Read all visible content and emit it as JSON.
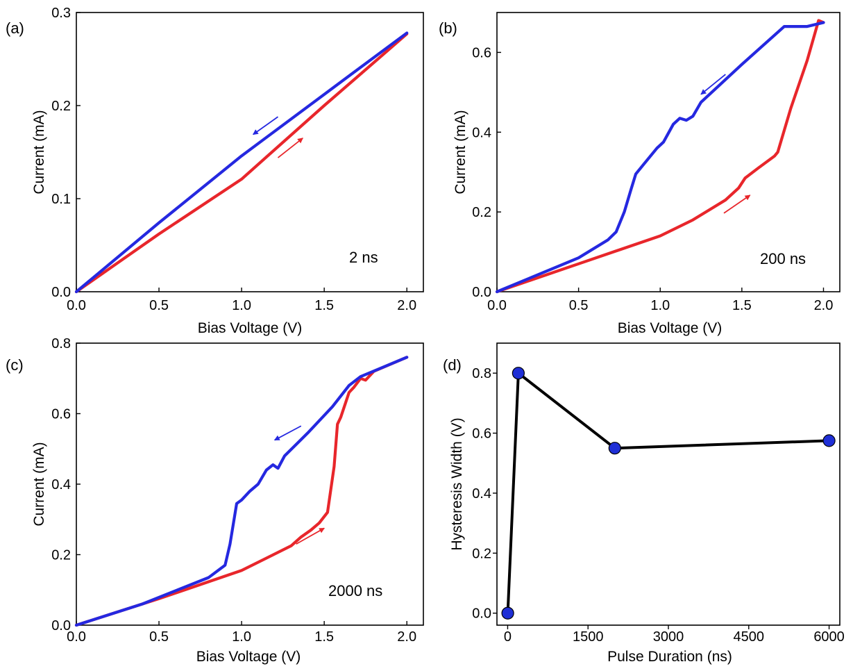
{
  "colors": {
    "forward": "#e8262b",
    "backward": "#2528e0",
    "marker": "#1f2fd6",
    "line_d": "#000000"
  },
  "chart_data": [
    {
      "panel": "(a)",
      "type": "line",
      "xlabel": "Bias Voltage (V)",
      "ylabel": "Current (mA)",
      "xlim": [
        0,
        2.1
      ],
      "ylim": [
        0,
        0.3
      ],
      "xticks": [
        "0.0",
        "0.5",
        "1.0",
        "1.5",
        "2.0"
      ],
      "yticks": [
        "0.0",
        "0.1",
        "0.2",
        "0.3"
      ],
      "annotation": "2 ns",
      "series": [
        {
          "color": "#e8262b",
          "direction": "forward",
          "x": [
            0,
            0.5,
            1.0,
            1.5,
            2.0
          ],
          "y": [
            0,
            0.062,
            0.121,
            0.2,
            0.277
          ]
        },
        {
          "color": "#2528e0",
          "direction": "backward",
          "x": [
            0,
            0.5,
            1.0,
            1.5,
            2.0
          ],
          "y": [
            0,
            0.074,
            0.146,
            0.212,
            0.278
          ]
        }
      ],
      "arrows": [
        {
          "color": "#e8262b",
          "from": [
            1.22,
            0.144
          ],
          "to": [
            1.37,
            0.165
          ]
        },
        {
          "color": "#2528e0",
          "from": [
            1.22,
            0.188
          ],
          "to": [
            1.07,
            0.169
          ]
        }
      ]
    },
    {
      "panel": "(b)",
      "type": "line",
      "xlabel": "Bias Voltage (V)",
      "ylabel": "Current (mA)",
      "xlim": [
        0,
        2.1
      ],
      "ylim": [
        0,
        0.7
      ],
      "xticks": [
        "0.0",
        "0.5",
        "1.0",
        "1.5",
        "2.0"
      ],
      "yticks": [
        "0.0",
        "0.2",
        "0.4",
        "0.6"
      ],
      "annotation": "200 ns",
      "series": [
        {
          "color": "#e8262b",
          "direction": "forward",
          "x": [
            0,
            0.5,
            1.0,
            1.2,
            1.4,
            1.48,
            1.52,
            1.6,
            1.7,
            1.72,
            1.8,
            1.9,
            1.97,
            2.0
          ],
          "y": [
            0,
            0.07,
            0.14,
            0.18,
            0.23,
            0.26,
            0.285,
            0.31,
            0.34,
            0.35,
            0.46,
            0.58,
            0.68,
            0.675
          ]
        },
        {
          "color": "#2528e0",
          "direction": "backward",
          "x": [
            0,
            0.5,
            0.68,
            0.73,
            0.78,
            0.82,
            0.85,
            0.9,
            0.98,
            1.02,
            1.08,
            1.12,
            1.16,
            1.2,
            1.25,
            1.5,
            1.76,
            1.9,
            2.0
          ],
          "y": [
            0,
            0.085,
            0.13,
            0.15,
            0.2,
            0.255,
            0.295,
            0.32,
            0.36,
            0.375,
            0.42,
            0.435,
            0.43,
            0.44,
            0.475,
            0.57,
            0.665,
            0.665,
            0.675
          ]
        }
      ],
      "arrows": [
        {
          "color": "#e8262b",
          "from": [
            1.39,
            0.197
          ],
          "to": [
            1.55,
            0.242
          ]
        },
        {
          "color": "#2528e0",
          "from": [
            1.4,
            0.545
          ],
          "to": [
            1.25,
            0.495
          ]
        }
      ]
    },
    {
      "panel": "(c)",
      "type": "line",
      "xlabel": "Bias Voltage (V)",
      "ylabel": "Current (mA)",
      "xlim": [
        0,
        2.1
      ],
      "ylim": [
        0,
        0.8
      ],
      "xticks": [
        "0.0",
        "0.5",
        "1.0",
        "1.5",
        "2.0"
      ],
      "yticks": [
        "0.0",
        "0.2",
        "0.4",
        "0.6",
        "0.8"
      ],
      "annotation": "2000 ns",
      "series": [
        {
          "color": "#e8262b",
          "direction": "forward",
          "x": [
            0,
            0.5,
            1.0,
            1.3,
            1.36,
            1.42,
            1.47,
            1.52,
            1.56,
            1.58,
            1.6,
            1.65,
            1.68,
            1.72,
            1.75,
            1.8,
            2.0
          ],
          "y": [
            0,
            0.075,
            0.155,
            0.225,
            0.25,
            0.27,
            0.29,
            0.32,
            0.45,
            0.57,
            0.59,
            0.66,
            0.675,
            0.7,
            0.695,
            0.72,
            0.76
          ]
        },
        {
          "color": "#2528e0",
          "direction": "backward",
          "x": [
            0,
            0.4,
            0.8,
            0.9,
            0.93,
            0.97,
            1.0,
            1.05,
            1.1,
            1.15,
            1.19,
            1.22,
            1.26,
            1.4,
            1.55,
            1.65,
            1.72,
            2.0
          ],
          "y": [
            0,
            0.06,
            0.135,
            0.17,
            0.23,
            0.345,
            0.355,
            0.38,
            0.4,
            0.44,
            0.455,
            0.445,
            0.48,
            0.545,
            0.62,
            0.68,
            0.705,
            0.76
          ]
        }
      ],
      "arrows": [
        {
          "color": "#e8262b",
          "from": [
            1.33,
            0.23
          ],
          "to": [
            1.5,
            0.275
          ]
        },
        {
          "color": "#2528e0",
          "from": [
            1.36,
            0.565
          ],
          "to": [
            1.2,
            0.525
          ]
        }
      ]
    },
    {
      "panel": "(d)",
      "type": "line",
      "xlabel": "Pulse Duration (ns)",
      "ylabel": "Hysteresis Width (V)",
      "xlim": [
        -200,
        6200
      ],
      "ylim": [
        -0.04,
        0.9
      ],
      "xticks": [
        "0",
        "1500",
        "3000",
        "4500",
        "6000"
      ],
      "yticks": [
        "0.0",
        "0.2",
        "0.4",
        "0.6",
        "0.8"
      ],
      "series": [
        {
          "color": "#000000",
          "marker_color": "#1f2fd6",
          "x": [
            2,
            200,
            2000,
            6000
          ],
          "y": [
            0.0,
            0.8,
            0.55,
            0.575
          ]
        }
      ]
    }
  ]
}
